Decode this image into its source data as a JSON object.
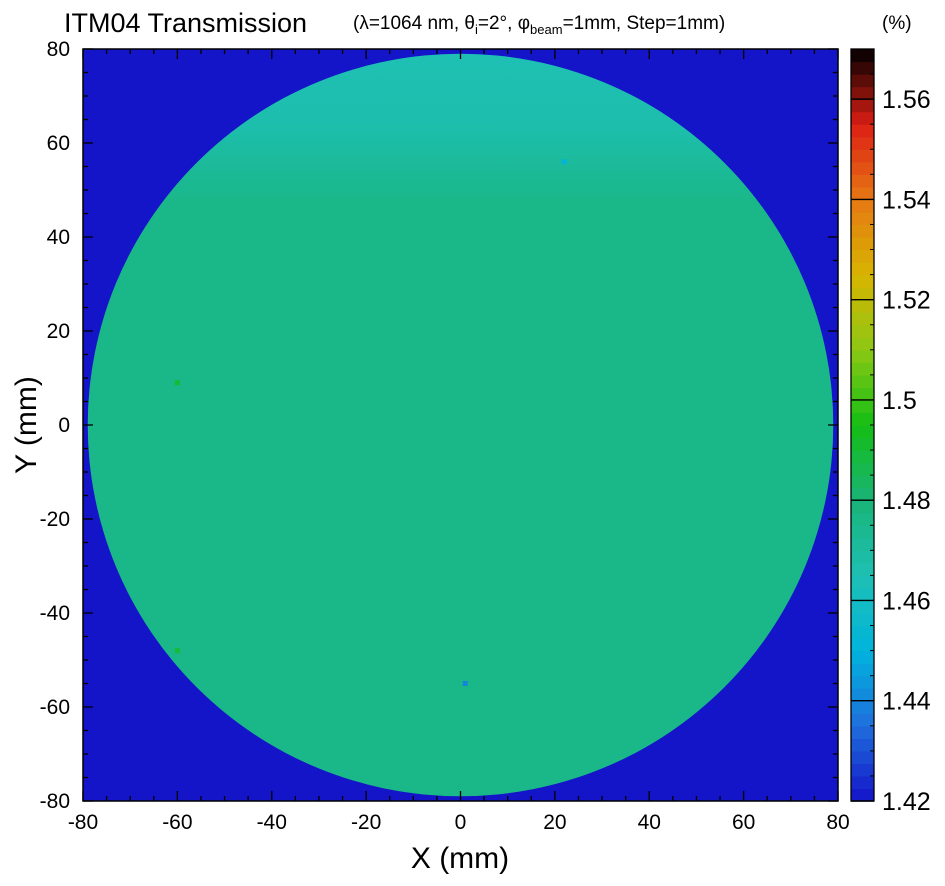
{
  "chart_data": {
    "type": "heatmap",
    "title": "ITM04 Transmission",
    "subtitle": {
      "open": "(",
      "lambda_symbol": "λ",
      "lambda_text": "=1064 nm, ",
      "theta_symbol": "θ",
      "theta_sub": "i",
      "theta_text": "=2°, ",
      "phi_symbol": "φ",
      "phi_sub": "beam",
      "phi_text": "=1mm, Step=1mm)"
    },
    "xlabel": "X (mm)",
    "ylabel": "Y (mm)",
    "colorbar_unit": "(%)",
    "xlim": [
      -80,
      80
    ],
    "ylim": [
      -80,
      80
    ],
    "x_ticks": [
      "-80",
      "-60",
      "-40",
      "-20",
      "0",
      "20",
      "40",
      "60",
      "80"
    ],
    "y_ticks": [
      "80",
      "60",
      "40",
      "20",
      "0",
      "-20",
      "-40",
      "-60",
      "-80"
    ],
    "colorbar_range": [
      1.42,
      1.57
    ],
    "colorbar_ticks": [
      "1.56",
      "1.54",
      "1.52",
      "1.5",
      "1.48",
      "1.46",
      "1.44",
      "1.42"
    ],
    "colorbar_tick_values": [
      1.56,
      1.54,
      1.52,
      1.5,
      1.48,
      1.46,
      1.44,
      1.42
    ],
    "colormap": [
      "#1414c8",
      "#1f6edc",
      "#00b4dc",
      "#1ec0b4",
      "#19b478",
      "#14be14",
      "#8cc814",
      "#d7b400",
      "#e67814",
      "#dc1e14",
      "#000000"
    ],
    "mirror_diameter_mm": 158,
    "background_value": 1.42,
    "mirror_bulk_value": 1.476,
    "top_edge_value": 1.465,
    "spot_defects": [
      {
        "x": 1,
        "y": -55,
        "value": 1.44
      },
      {
        "x": 22,
        "y": 56,
        "value": 1.45
      },
      {
        "x": -60,
        "y": -48,
        "value": 1.49
      },
      {
        "x": -60,
        "y": 9,
        "value": 1.49
      }
    ]
  }
}
